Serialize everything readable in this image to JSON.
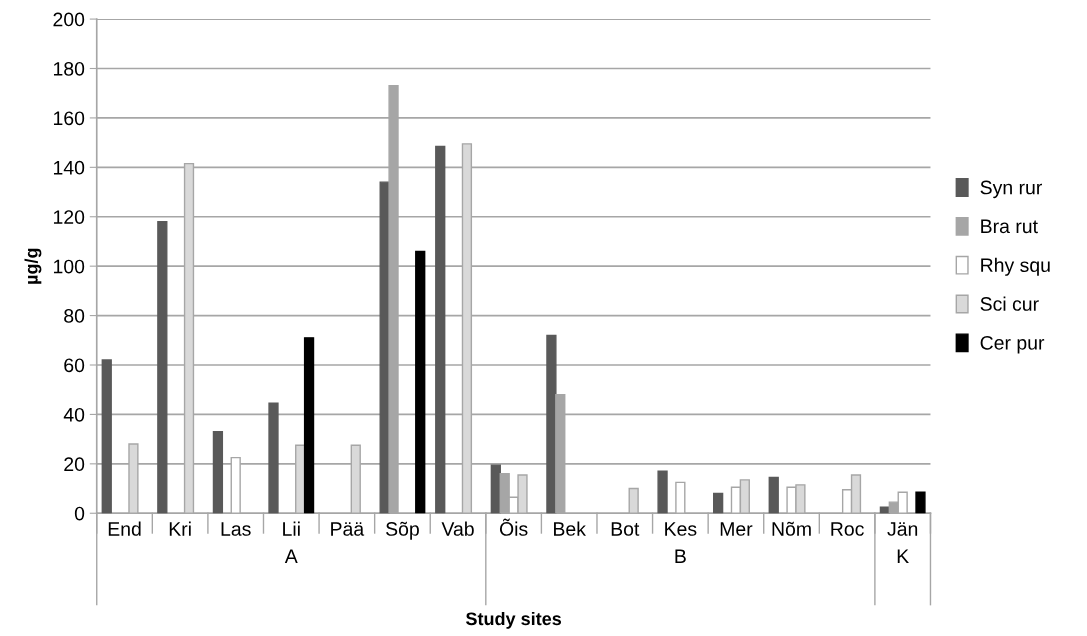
{
  "chart_data": {
    "type": "bar",
    "xlabel": "Study sites",
    "ylabel": "µg/g",
    "categories": [
      "End",
      "Kri",
      "Las",
      "Lii",
      "Pää",
      "Sõp",
      "Vab",
      "Õis",
      "Bek",
      "Bot",
      "Kes",
      "Mer",
      "Nõm",
      "Roc",
      "Jän"
    ],
    "series": [
      {
        "name": "Syn rur",
        "color": "#595959",
        "values": [
          62,
          118,
          33,
          44.5,
          null,
          134,
          148.5,
          19.5,
          72,
          null,
          17,
          8,
          14.5,
          null,
          2.5
        ]
      },
      {
        "name": "Bra rut",
        "color": "#a6a6a6",
        "values": [
          null,
          null,
          null,
          null,
          null,
          173,
          null,
          16,
          48,
          null,
          null,
          null,
          null,
          null,
          4.5
        ]
      },
      {
        "name": "Rhy squ",
        "color": "#ffffff",
        "values": [
          null,
          null,
          22.5,
          null,
          null,
          null,
          null,
          6.5,
          null,
          null,
          12.5,
          10.5,
          10.5,
          9.5,
          8.5
        ]
      },
      {
        "name": "Sci cur",
        "color": "#d9d9d9",
        "values": [
          28,
          141.5,
          null,
          27.5,
          27.5,
          null,
          149.5,
          15.5,
          null,
          10,
          null,
          13.5,
          11.5,
          15.5,
          null
        ]
      },
      {
        "name": "Cer pur",
        "color": "#000000",
        "values": [
          null,
          null,
          null,
          71,
          null,
          106,
          null,
          null,
          null,
          null,
          null,
          null,
          null,
          null,
          8.5
        ]
      }
    ],
    "ylim": [
      0,
      200
    ],
    "yticks": [
      0,
      20,
      40,
      60,
      80,
      100,
      120,
      140,
      160,
      180,
      200
    ],
    "grid": "y",
    "legend": "right",
    "annotations": [
      "A",
      "B",
      "K"
    ]
  }
}
